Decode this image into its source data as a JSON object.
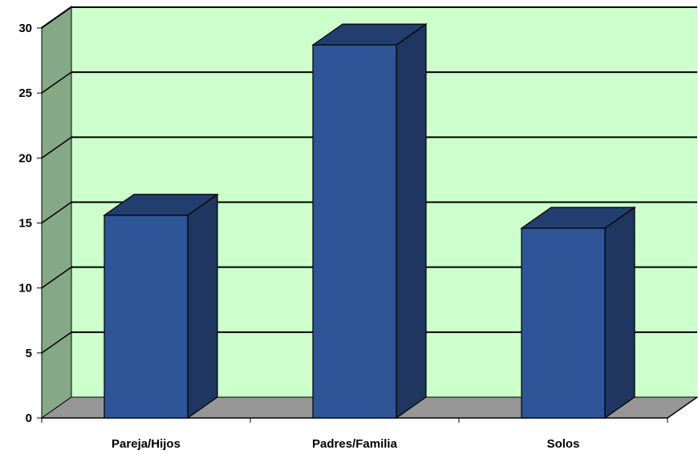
{
  "chart_data": {
    "type": "bar",
    "categories": [
      "Pareja/Hijos",
      "Padres/Familia",
      "Solos"
    ],
    "values": [
      15.6,
      28.7,
      14.6
    ],
    "ylim": [
      0,
      30
    ],
    "yticks": [
      0,
      5,
      10,
      15,
      20,
      25,
      30
    ],
    "grid": true,
    "legend": "none",
    "style": "3d-column"
  },
  "colors": {
    "plot_background": "#ccffcc",
    "side_wall": "#85a886",
    "floor": "#969696",
    "bar_front": "#2e5597",
    "bar_top": "#223e6e",
    "bar_side": "#1e3660",
    "outline": "#000000"
  }
}
